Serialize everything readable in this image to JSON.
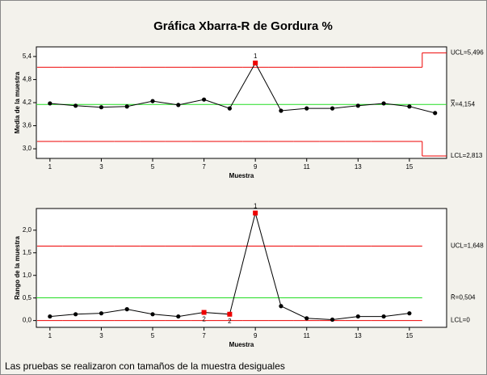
{
  "title": "Gráfica Xbarra-R de Gordura %",
  "footer": "Las pruebas se realizaron con tamaños de la muestra desiguales",
  "chart_data": [
    {
      "type": "line",
      "ylabel": "Media de la muestra",
      "xlabel": "Muestra",
      "x": [
        1,
        2,
        3,
        4,
        5,
        6,
        7,
        8,
        9,
        10,
        11,
        12,
        13,
        14,
        15,
        16
      ],
      "values": [
        4.18,
        4.12,
        4.08,
        4.1,
        4.24,
        4.14,
        4.28,
        4.05,
        5.23,
        3.99,
        4.05,
        4.05,
        4.12,
        4.18,
        4.1,
        3.93
      ],
      "xlim": [
        0.47,
        16.45
      ],
      "xticks": [
        1,
        3,
        5,
        7,
        9,
        11,
        13,
        15
      ],
      "ylim": [
        2.75,
        5.65
      ],
      "yticks": [
        {
          "value": 3.0,
          "label": "3,0"
        },
        {
          "value": 3.6,
          "label": "3,6"
        },
        {
          "value": 4.2,
          "label": "4,2"
        },
        {
          "value": 4.8,
          "label": "4,8"
        },
        {
          "value": 5.4,
          "label": "5,4"
        }
      ],
      "line_color": "#000000",
      "point_color": "#000000",
      "flag_color": "#ee0000",
      "flags": [
        {
          "index": 8,
          "label": "1"
        }
      ],
      "ucl": {
        "label": "UCL=5,496",
        "color": "#ee0000",
        "values": [
          5.12,
          5.12,
          5.12,
          5.12,
          5.12,
          5.12,
          5.12,
          5.12,
          5.12,
          5.12,
          5.12,
          5.12,
          5.12,
          5.12,
          5.12,
          5.496
        ]
      },
      "center": {
        "label": "X̿=4,154",
        "color": "#22dd22",
        "value": 4.154
      },
      "lcl": {
        "label": "LCL=2,813",
        "color": "#ee0000",
        "values": [
          3.19,
          3.19,
          3.19,
          3.19,
          3.19,
          3.19,
          3.19,
          3.19,
          3.19,
          3.19,
          3.19,
          3.19,
          3.19,
          3.19,
          3.19,
          2.813
        ]
      }
    },
    {
      "type": "line",
      "ylabel": "Rango de la muestra",
      "xlabel": "Muestra",
      "x": [
        1,
        2,
        3,
        4,
        5,
        6,
        7,
        8,
        9,
        10,
        11,
        12,
        13,
        14,
        15
      ],
      "values": [
        0.09,
        0.14,
        0.16,
        0.25,
        0.14,
        0.09,
        0.18,
        0.14,
        2.38,
        0.32,
        0.05,
        0.02,
        0.09,
        0.09,
        0.16
      ],
      "xlim": [
        0.47,
        16.45
      ],
      "xticks": [
        1,
        3,
        5,
        7,
        9,
        11,
        13,
        15
      ],
      "ylim": [
        -0.15,
        2.48
      ],
      "yticks": [
        {
          "value": 0.0,
          "label": "0,0"
        },
        {
          "value": 0.5,
          "label": "0,5"
        },
        {
          "value": 1.0,
          "label": "1,0"
        },
        {
          "value": 1.5,
          "label": "1,5"
        },
        {
          "value": 2.0,
          "label": "2,0"
        }
      ],
      "line_color": "#000000",
      "point_color": "#000000",
      "flag_color": "#ee0000",
      "flags": [
        {
          "index": 6,
          "label": "2"
        },
        {
          "index": 7,
          "label": "2"
        },
        {
          "index": 8,
          "label": "1"
        }
      ],
      "ucl": {
        "label": "UCL=1,648",
        "color": "#ee0000",
        "values": [
          1.648,
          1.648,
          1.648,
          1.648,
          1.648,
          1.648,
          1.648,
          1.648,
          1.648,
          1.648,
          1.648,
          1.648,
          1.648,
          1.648,
          1.648
        ]
      },
      "center": {
        "label": "R̄=0,504",
        "color": "#22dd22",
        "value": 0.504
      },
      "lcl": {
        "label": "LCL=0",
        "color": "#ee0000",
        "values": [
          0,
          0,
          0,
          0,
          0,
          0,
          0,
          0,
          0,
          0,
          0,
          0,
          0,
          0,
          0
        ]
      }
    }
  ]
}
